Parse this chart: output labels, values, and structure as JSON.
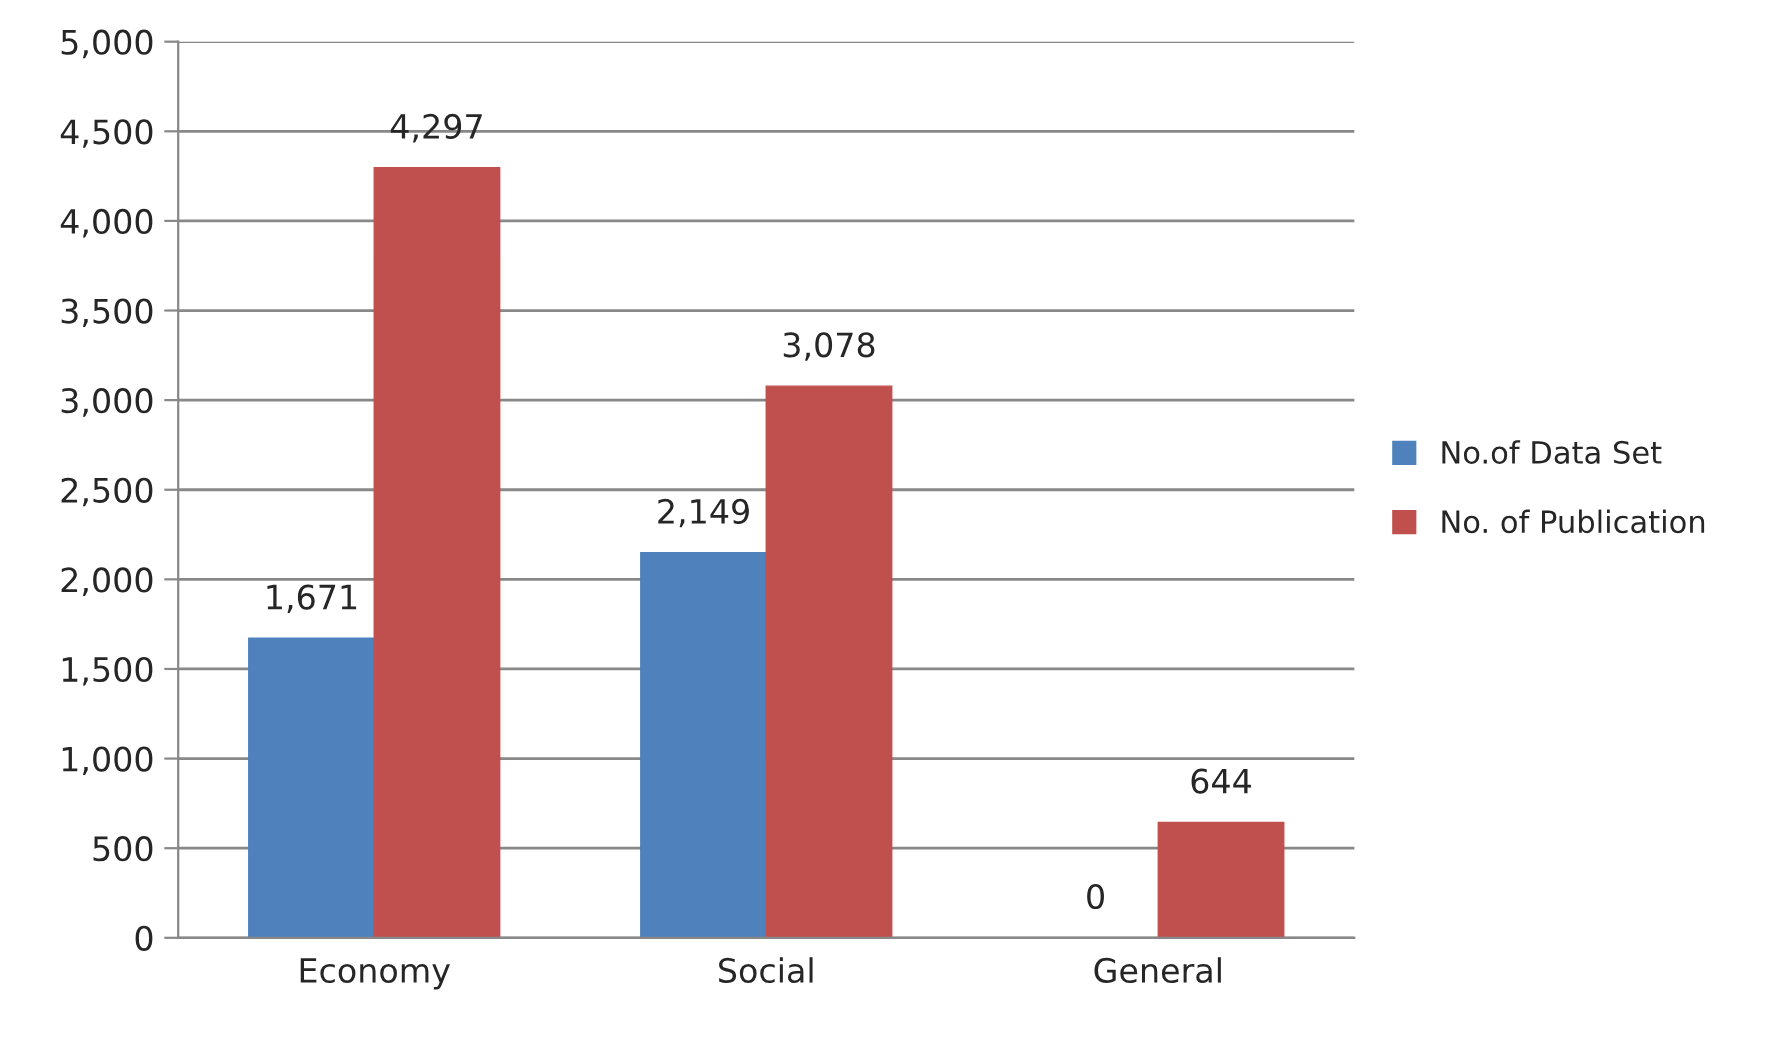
{
  "chart_data": {
    "type": "bar",
    "categories": [
      "Economy",
      "Social",
      "General"
    ],
    "series": [
      {
        "name": "No.of Data Set",
        "color": "#4f81bd",
        "values": [
          1671,
          2149,
          0
        ],
        "value_labels": [
          "1,671",
          "2,149",
          "0"
        ]
      },
      {
        "name": "No. of Publication",
        "color": "#c0504d",
        "values": [
          4297,
          3078,
          644
        ],
        "value_labels": [
          "4,297",
          "3,078",
          "644"
        ]
      }
    ],
    "ylim": [
      0,
      5000
    ],
    "yticks": [
      {
        "value": 0,
        "label": "0"
      },
      {
        "value": 500,
        "label": "500"
      },
      {
        "value": 1000,
        "label": "1,000"
      },
      {
        "value": 1500,
        "label": "1,500"
      },
      {
        "value": 2000,
        "label": "2,000"
      },
      {
        "value": 2500,
        "label": "2,500"
      },
      {
        "value": 3000,
        "label": "3,000"
      },
      {
        "value": 3500,
        "label": "3,500"
      },
      {
        "value": 4000,
        "label": "4,000"
      },
      {
        "value": 4500,
        "label": "4,500"
      },
      {
        "value": 5000,
        "label": "5,000"
      }
    ],
    "grid": "y",
    "legend": "right"
  }
}
